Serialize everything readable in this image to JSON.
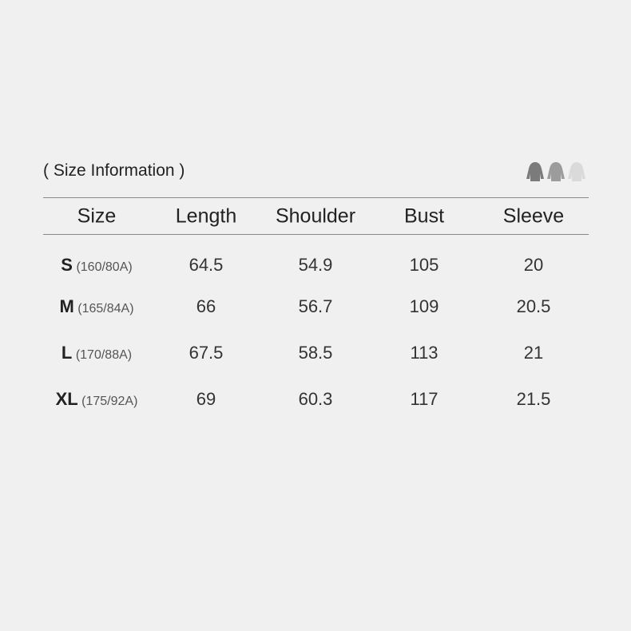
{
  "title": "( Size Information )",
  "icons": [
    {
      "name": "hoodie-icon",
      "color": "#7b7b7b"
    },
    {
      "name": "hoodie-icon",
      "color": "#9c9c9c"
    },
    {
      "name": "hoodie-icon",
      "color": "#dadada"
    }
  ],
  "table": {
    "headers": [
      "Size",
      "Length",
      "Shoulder",
      "Bust",
      "Sleeve"
    ],
    "rows": [
      {
        "size": "S",
        "spec": "(160/80A)",
        "values": [
          "64.5",
          "54.9",
          "105",
          "20"
        ]
      },
      {
        "size": "M",
        "spec": "(165/84A)",
        "values": [
          "66",
          "56.7",
          "109",
          "20.5"
        ]
      },
      {
        "size": "L",
        "spec": "(170/88A)",
        "values": [
          "67.5",
          "58.5",
          "113",
          "21"
        ]
      },
      {
        "size": "XL",
        "spec": "(175/92A)",
        "values": [
          "69",
          "60.3",
          "117",
          "21.5"
        ]
      }
    ]
  }
}
